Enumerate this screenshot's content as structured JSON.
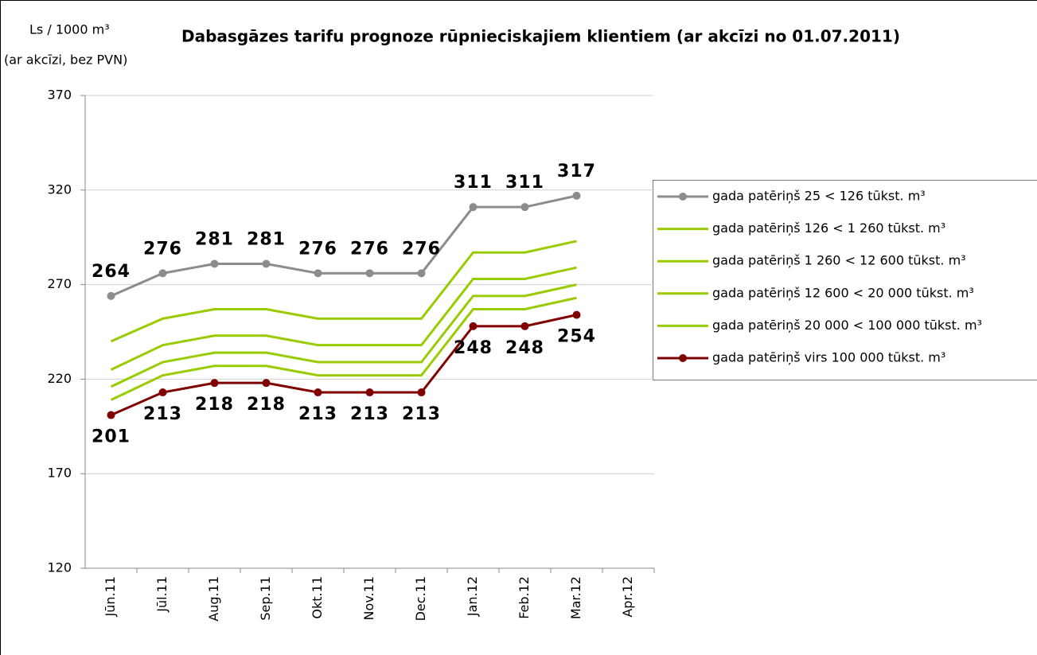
{
  "chart_data": {
    "type": "line",
    "title": "Dabasgāzes tarifu prognoze rūpnieciskajiem klientiem (ar akcīzi no 01.07.2011)",
    "y_label": "Ls / 1000 m³",
    "y_label_sub": "(ar akcīzi, bez PVN)",
    "categories": [
      "Jūn.11",
      "Jūl.11",
      "Aug.11",
      "Sep.11",
      "Okt.11",
      "Nov.11",
      "Dec.11",
      "Jan.12",
      "Feb.12",
      "Mar.12",
      "Apr.12"
    ],
    "ylim": [
      120,
      370
    ],
    "yticks": [
      120,
      170,
      220,
      270,
      320,
      370
    ],
    "grid": true,
    "legend": "right",
    "series": [
      {
        "name": "gada patēriņš 25 < 126 tūkst. m³",
        "color": "#8c8c8c",
        "markers": true,
        "data_labels": "above",
        "values": [
          264,
          276,
          281,
          281,
          276,
          276,
          276,
          311,
          311,
          317,
          null
        ]
      },
      {
        "name": "gada patēriņš 126 < 1 260 tūkst. m³",
        "color": "#99cc00",
        "markers": false,
        "values": [
          240,
          252,
          257,
          257,
          252,
          252,
          252,
          287,
          287,
          293,
          null
        ]
      },
      {
        "name": "gada patēriņš 1 260 < 12 600 tūkst. m³",
        "color": "#99cc00",
        "markers": false,
        "values": [
          225,
          238,
          243,
          243,
          238,
          238,
          238,
          273,
          273,
          279,
          null
        ]
      },
      {
        "name": "gada patēriņš 12 600 < 20 000 tūkst. m³",
        "color": "#99cc00",
        "markers": false,
        "values": [
          216,
          229,
          234,
          234,
          229,
          229,
          229,
          264,
          264,
          270,
          null
        ]
      },
      {
        "name": "gada patēriņš 20 000 < 100 000 tūkst. m³",
        "color": "#99cc00",
        "markers": false,
        "values": [
          209,
          222,
          227,
          227,
          222,
          222,
          222,
          257,
          257,
          263,
          null
        ]
      },
      {
        "name": "gada patēriņš virs 100 000 tūkst. m³",
        "color": "#800000",
        "markers": true,
        "data_labels": "below",
        "values": [
          201,
          213,
          218,
          218,
          213,
          213,
          213,
          248,
          248,
          254,
          null
        ]
      }
    ]
  }
}
